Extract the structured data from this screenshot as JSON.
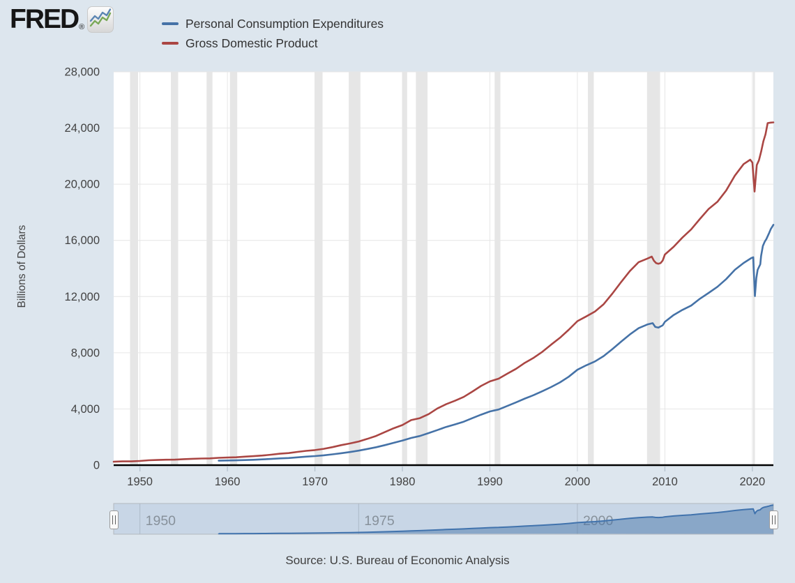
{
  "header": {
    "logo_text": "FRED",
    "logo_registered": "®"
  },
  "legend": {
    "items": [
      {
        "label": "Personal Consumption Expenditures",
        "color": "#4572a7"
      },
      {
        "label": "Gross Domestic Product",
        "color": "#aa4643"
      }
    ]
  },
  "chart_data": {
    "type": "line",
    "title": "",
    "xlabel": "",
    "ylabel": "Billions of Dollars",
    "ylim": [
      0,
      28000
    ],
    "x_range": [
      1947,
      2022.4
    ],
    "grid": true,
    "legend_position": "top-left",
    "y_ticks": [
      {
        "v": 0,
        "label": "0"
      },
      {
        "v": 4000,
        "label": "4,000"
      },
      {
        "v": 8000,
        "label": "8,000"
      },
      {
        "v": 12000,
        "label": "12,000"
      },
      {
        "v": 16000,
        "label": "16,000"
      },
      {
        "v": 20000,
        "label": "20,000"
      },
      {
        "v": 24000,
        "label": "24,000"
      },
      {
        "v": 28000,
        "label": "28,000"
      }
    ],
    "x_ticks": [
      {
        "v": 1950,
        "label": "1950"
      },
      {
        "v": 1960,
        "label": "1960"
      },
      {
        "v": 1970,
        "label": "1970"
      },
      {
        "v": 1980,
        "label": "1980"
      },
      {
        "v": 1990,
        "label": "1990"
      },
      {
        "v": 2000,
        "label": "2000"
      },
      {
        "v": 2010,
        "label": "2010"
      },
      {
        "v": 2020,
        "label": "2020"
      }
    ],
    "recession_bands": [
      [
        1948.87,
        1949.79
      ],
      [
        1953.54,
        1954.37
      ],
      [
        1957.62,
        1958.29
      ],
      [
        1960.29,
        1961.12
      ],
      [
        1969.96,
        1970.87
      ],
      [
        1973.87,
        1975.2
      ],
      [
        1980.04,
        1980.54
      ],
      [
        1981.54,
        1982.87
      ],
      [
        1990.54,
        1991.2
      ],
      [
        2001.2,
        2001.87
      ],
      [
        2007.96,
        2009.45
      ],
      [
        2020.08,
        2020.29
      ]
    ],
    "band_color": "#e6e6e6",
    "series": [
      {
        "name": "Personal Consumption Expenditures",
        "color": "#4572a7",
        "points": [
          [
            1959,
            318
          ],
          [
            1960,
            331
          ],
          [
            1961,
            342
          ],
          [
            1962,
            363
          ],
          [
            1963,
            382
          ],
          [
            1964,
            411
          ],
          [
            1965,
            443
          ],
          [
            1966,
            480
          ],
          [
            1967,
            507
          ],
          [
            1968,
            557
          ],
          [
            1969,
            604
          ],
          [
            1970,
            647
          ],
          [
            1971,
            700
          ],
          [
            1972,
            769
          ],
          [
            1973,
            851
          ],
          [
            1974,
            932
          ],
          [
            1975,
            1032
          ],
          [
            1976,
            1150
          ],
          [
            1977,
            1276
          ],
          [
            1978,
            1426
          ],
          [
            1979,
            1589
          ],
          [
            1980,
            1754
          ],
          [
            1981,
            1937
          ],
          [
            1982,
            2073
          ],
          [
            1983,
            2286
          ],
          [
            1984,
            2498
          ],
          [
            1985,
            2722
          ],
          [
            1986,
            2898
          ],
          [
            1987,
            3092
          ],
          [
            1988,
            3346
          ],
          [
            1989,
            3592
          ],
          [
            1990,
            3825
          ],
          [
            1991,
            3960
          ],
          [
            1992,
            4215
          ],
          [
            1993,
            4471
          ],
          [
            1994,
            4741
          ],
          [
            1995,
            4984
          ],
          [
            1996,
            5268
          ],
          [
            1997,
            5561
          ],
          [
            1998,
            5889
          ],
          [
            1999,
            6290
          ],
          [
            2000,
            6792
          ],
          [
            2001,
            7103
          ],
          [
            2002,
            7384
          ],
          [
            2003,
            7765
          ],
          [
            2004,
            8260
          ],
          [
            2005,
            8794
          ],
          [
            2006,
            9304
          ],
          [
            2007,
            9750
          ],
          [
            2008,
            10014
          ],
          [
            2008.6,
            10110
          ],
          [
            2008.9,
            9847
          ],
          [
            2009.25,
            9788
          ],
          [
            2009.75,
            9953
          ],
          [
            2010,
            10202
          ],
          [
            2011,
            10689
          ],
          [
            2012,
            11051
          ],
          [
            2013,
            11361
          ],
          [
            2014,
            11847
          ],
          [
            2015,
            12263
          ],
          [
            2016,
            12693
          ],
          [
            2017,
            13239
          ],
          [
            2018,
            13904
          ],
          [
            2019,
            14392
          ],
          [
            2019.9,
            14750
          ],
          [
            2020.1,
            14800
          ],
          [
            2020.29,
            12032
          ],
          [
            2020.45,
            13300
          ],
          [
            2020.6,
            13900
          ],
          [
            2020.9,
            14300
          ],
          [
            2021,
            14900
          ],
          [
            2021.2,
            15600
          ],
          [
            2021.4,
            15900
          ],
          [
            2021.6,
            16100
          ],
          [
            2021.9,
            16500
          ],
          [
            2022.1,
            16800
          ],
          [
            2022.4,
            17106
          ]
        ]
      },
      {
        "name": "Gross Domestic Product",
        "color": "#aa4643",
        "points": [
          [
            1947,
            243
          ],
          [
            1948,
            269
          ],
          [
            1949,
            267
          ],
          [
            1950,
            300
          ],
          [
            1951,
            347
          ],
          [
            1952,
            368
          ],
          [
            1953,
            389
          ],
          [
            1954,
            391
          ],
          [
            1955,
            426
          ],
          [
            1956,
            450
          ],
          [
            1957,
            474
          ],
          [
            1958,
            482
          ],
          [
            1959,
            522
          ],
          [
            1960,
            542
          ],
          [
            1961,
            562
          ],
          [
            1962,
            604
          ],
          [
            1963,
            638
          ],
          [
            1964,
            685
          ],
          [
            1965,
            743
          ],
          [
            1966,
            815
          ],
          [
            1967,
            861
          ],
          [
            1968,
            942
          ],
          [
            1969,
            1019
          ],
          [
            1970,
            1073
          ],
          [
            1971,
            1164
          ],
          [
            1972,
            1279
          ],
          [
            1973,
            1425
          ],
          [
            1974,
            1545
          ],
          [
            1975,
            1684
          ],
          [
            1976,
            1873
          ],
          [
            1977,
            2081
          ],
          [
            1978,
            2351
          ],
          [
            1979,
            2627
          ],
          [
            1980,
            2857
          ],
          [
            1981,
            3207
          ],
          [
            1982,
            3344
          ],
          [
            1983,
            3634
          ],
          [
            1984,
            4038
          ],
          [
            1985,
            4339
          ],
          [
            1986,
            4580
          ],
          [
            1987,
            4855
          ],
          [
            1988,
            5236
          ],
          [
            1989,
            5642
          ],
          [
            1990,
            5963
          ],
          [
            1991,
            6158
          ],
          [
            1992,
            6520
          ],
          [
            1993,
            6859
          ],
          [
            1994,
            7287
          ],
          [
            1995,
            7640
          ],
          [
            1996,
            8073
          ],
          [
            1997,
            8578
          ],
          [
            1998,
            9063
          ],
          [
            1999,
            9631
          ],
          [
            2000,
            10251
          ],
          [
            2001,
            10582
          ],
          [
            2002,
            10936
          ],
          [
            2003,
            11458
          ],
          [
            2004,
            12214
          ],
          [
            2005,
            13037
          ],
          [
            2006,
            13815
          ],
          [
            2007,
            14452
          ],
          [
            2008,
            14706
          ],
          [
            2008.5,
            14843
          ],
          [
            2008.75,
            14550
          ],
          [
            2009,
            14384
          ],
          [
            2009.25,
            14340
          ],
          [
            2009.5,
            14384
          ],
          [
            2009.75,
            14567
          ],
          [
            2010,
            14992
          ],
          [
            2011,
            15543
          ],
          [
            2012,
            16197
          ],
          [
            2013,
            16785
          ],
          [
            2014,
            17527
          ],
          [
            2015,
            18238
          ],
          [
            2016,
            18745
          ],
          [
            2017,
            19543
          ],
          [
            2018,
            20612
          ],
          [
            2019,
            21433
          ],
          [
            2019.75,
            21747
          ],
          [
            2020,
            21538
          ],
          [
            2020.25,
            19477
          ],
          [
            2020.5,
            21362
          ],
          [
            2020.75,
            21705
          ],
          [
            2021,
            22313
          ],
          [
            2021.25,
            23046
          ],
          [
            2021.5,
            23550
          ],
          [
            2021.75,
            24349
          ],
          [
            2022.1,
            24386
          ],
          [
            2022.4,
            24400
          ]
        ]
      }
    ]
  },
  "slider": {
    "ylim": [
      0,
      18000
    ],
    "series_index": 0,
    "ticks": [
      {
        "v": 1950,
        "label": "1950"
      },
      {
        "v": 1975,
        "label": "1975"
      },
      {
        "v": 2000,
        "label": "2000"
      }
    ],
    "track_color": "#c8d6e6",
    "area_line_color": "#4173ad",
    "area_fill_color": "rgba(69,114,167,0.48)"
  },
  "footer": {
    "source": "Source: U.S. Bureau of Economic Analysis"
  }
}
